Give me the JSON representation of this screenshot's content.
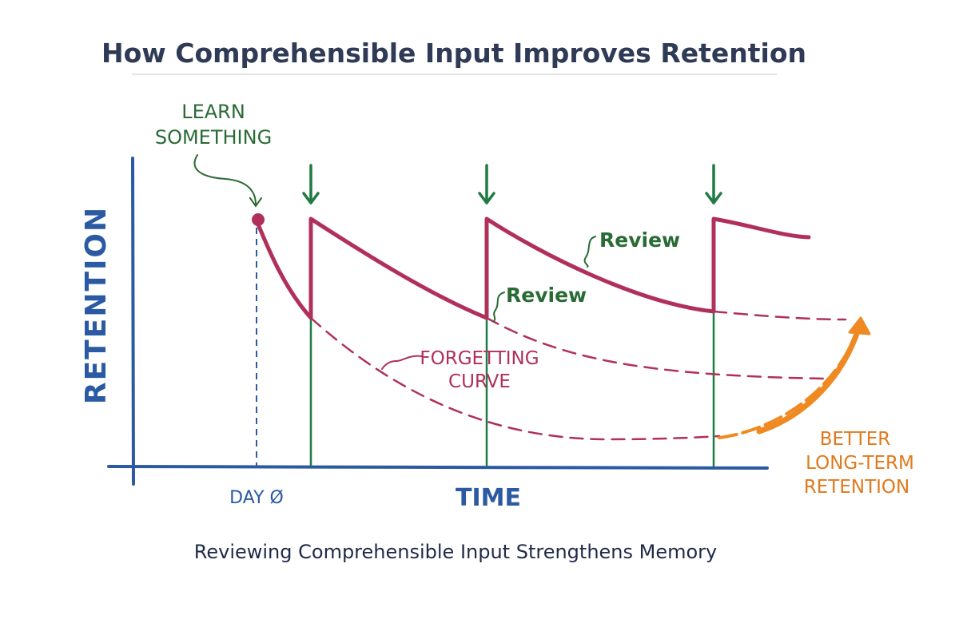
{
  "title": "How Comprehensible Input Improves Retention",
  "caption": "Reviewing Comprehensible Input Strengthens Memory",
  "axes": {
    "y_label": "Retention",
    "x_label": "Time",
    "origin_tick": "Day Ø"
  },
  "annotations": {
    "learn_line1": "Learn",
    "learn_line2": "Something",
    "review_upper": "Review",
    "review_lower": "Review",
    "forgetting_line1": "Forgetting",
    "forgetting_line2": "Curve",
    "better_line1": "Better",
    "better_line2": "Long-Term",
    "better_line3": "Retention"
  },
  "colors": {
    "axis": "#2b5aa3",
    "curve": "#b0305a",
    "review_marker": "#1f7a43",
    "annotation_green": "#2a6b35",
    "highlight": "#ef8a22",
    "title": "#2f3a56"
  }
}
